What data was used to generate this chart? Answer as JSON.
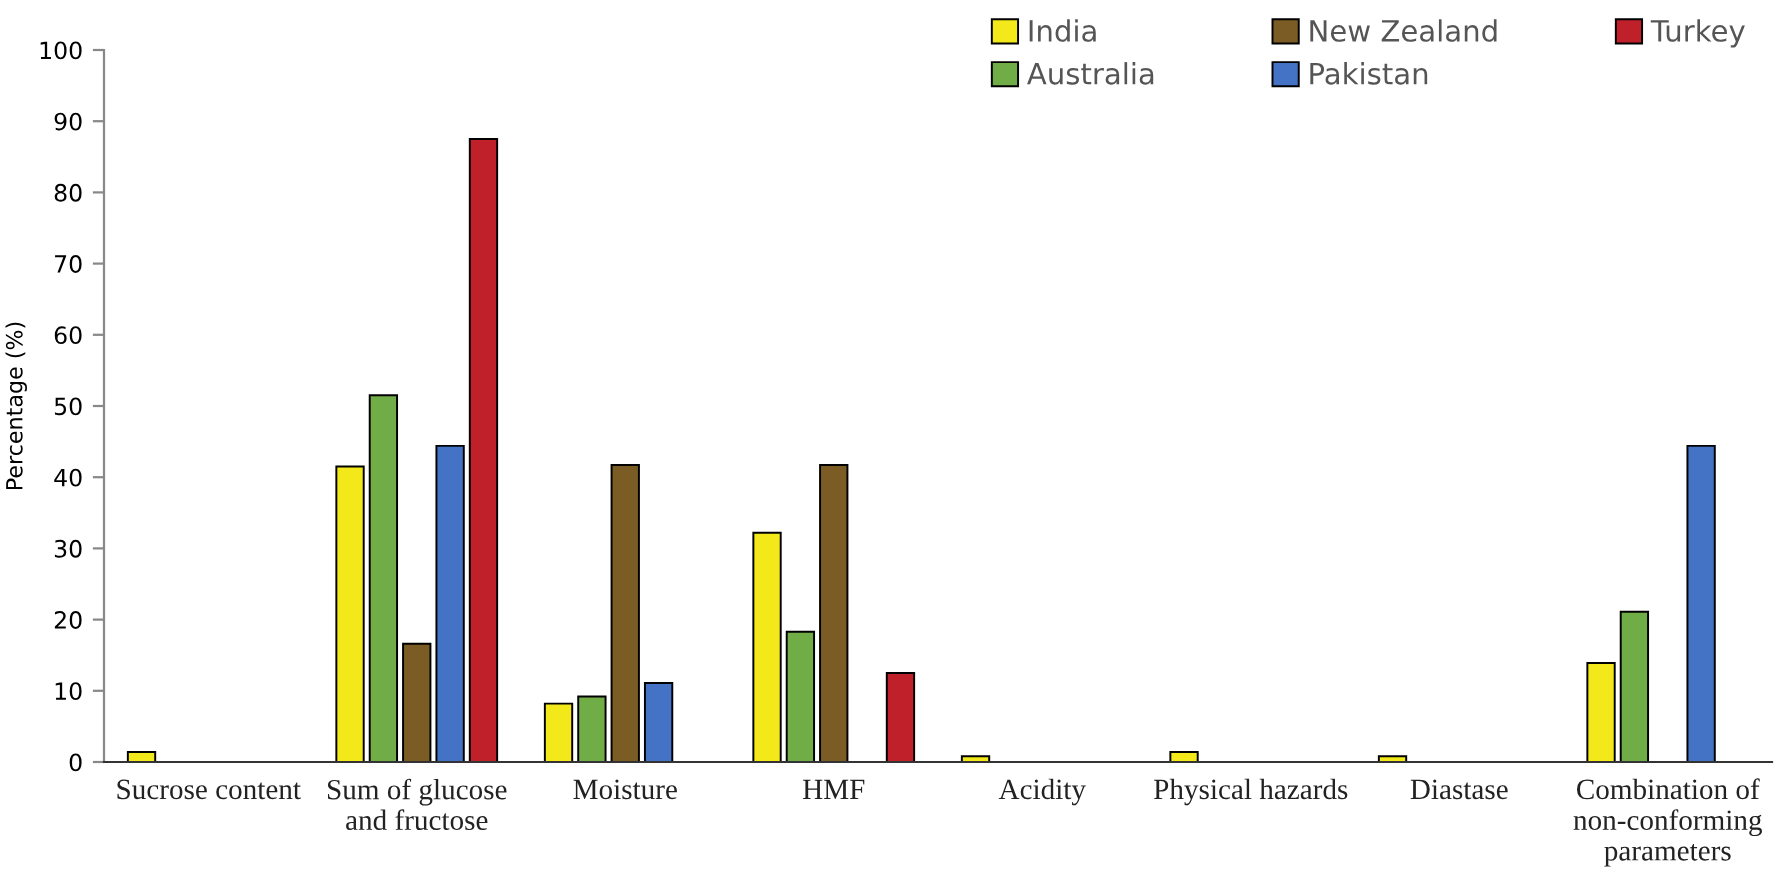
{
  "chart_data": {
    "type": "bar",
    "ylabel": "Percentage (%)",
    "categories": [
      "Sucrose content",
      "Sum of glucose\nand fructose",
      "Moisture",
      "HMF",
      "Acidity",
      "Physical hazards",
      "Diastase",
      "Combination of\nnon-conforming\nparameters"
    ],
    "series": [
      {
        "name": "India",
        "color": "#f2e81a",
        "values": [
          1.4,
          41.5,
          8.2,
          32.2,
          0.8,
          1.4,
          0.8,
          13.9
        ]
      },
      {
        "name": "Australia",
        "color": "#70ad47",
        "values": [
          null,
          51.5,
          9.2,
          18.3,
          null,
          null,
          null,
          21.1
        ]
      },
      {
        "name": "New Zealand",
        "color": "#7b5c24",
        "values": [
          null,
          16.6,
          41.7,
          41.7,
          null,
          null,
          null,
          null
        ]
      },
      {
        "name": "Pakistan",
        "color": "#4472c4",
        "values": [
          null,
          44.4,
          11.1,
          null,
          null,
          null,
          null,
          44.4
        ]
      },
      {
        "name": "Turkey",
        "color": "#c0202a",
        "values": [
          null,
          87.5,
          null,
          12.5,
          null,
          null,
          null,
          null
        ]
      }
    ],
    "ylim": [
      0,
      100
    ],
    "yticks": [
      0,
      10,
      20,
      30,
      40,
      50,
      60,
      70,
      80,
      90,
      100
    ],
    "grid": false,
    "legend": "top right"
  }
}
